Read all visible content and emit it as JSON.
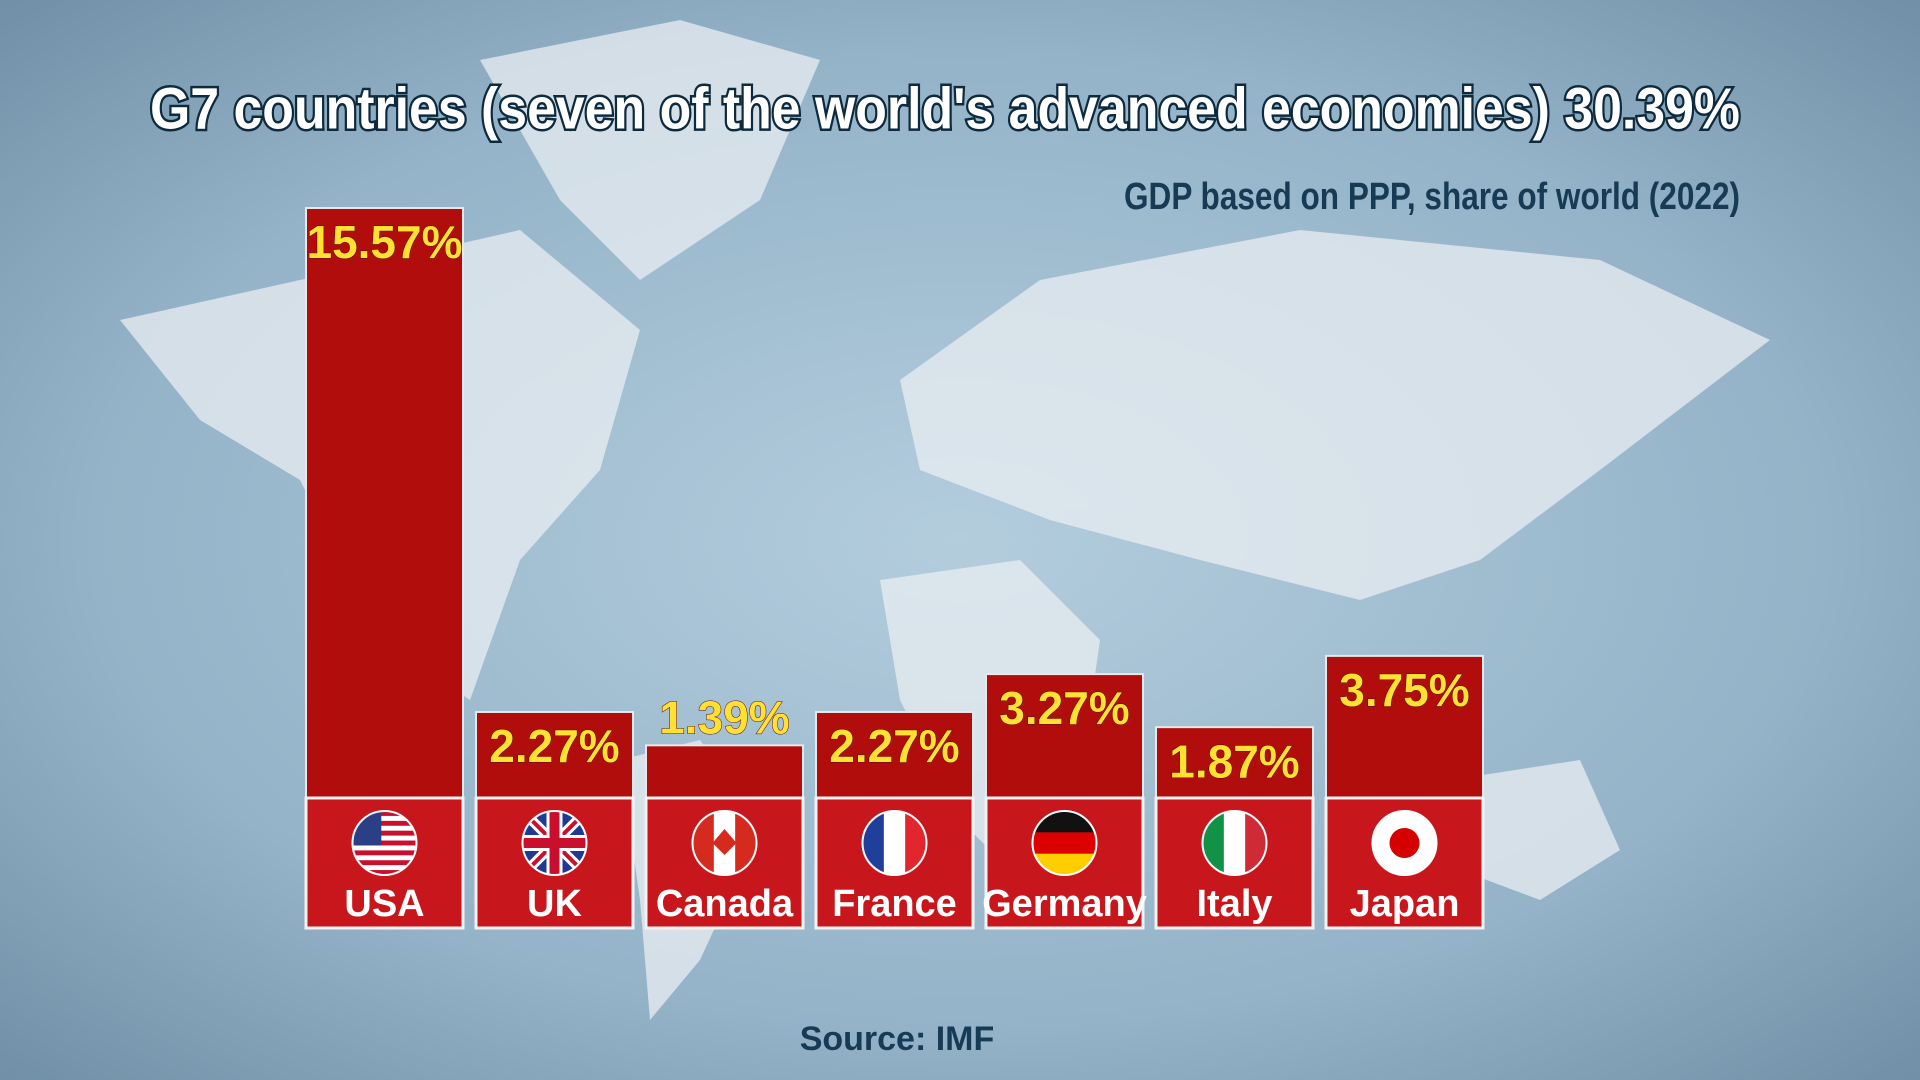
{
  "chart_data": {
    "type": "bar",
    "title": "G7 countries (seven of the world's advanced economies) 30.39%",
    "subtitle": "GDP based on PPP, share of world (2022)",
    "source": "Source: IMF",
    "categories": [
      "USA",
      "UK",
      "Canada",
      "France",
      "Germany",
      "Italy",
      "Japan"
    ],
    "values": [
      15.57,
      2.27,
      1.39,
      2.27,
      3.27,
      1.87,
      3.75
    ],
    "value_labels": [
      "15.57%",
      "2.27%",
      "1.39%",
      "2.27%",
      "3.27%",
      "1.87%",
      "3.75%"
    ],
    "color": "#b10d0d"
  }
}
